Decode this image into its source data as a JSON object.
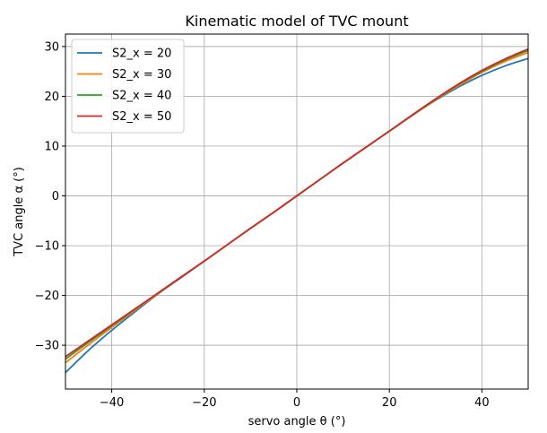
{
  "chart_data": {
    "type": "line",
    "title": "Kinematic model of TVC mount",
    "xlabel": "servo angle θ (°)",
    "ylabel": "TVC angle α (°)",
    "xlim": [
      -50,
      50
    ],
    "ylim": [
      -38.8,
      32.5
    ],
    "xticks": [
      -40,
      -20,
      0,
      20,
      40
    ],
    "xtick_labels": [
      "−40",
      "−20",
      "0",
      "20",
      "40"
    ],
    "yticks": [
      -30,
      -20,
      -10,
      0,
      10,
      20,
      30
    ],
    "ytick_labels": [
      "−30",
      "−20",
      "−10",
      "0",
      "10",
      "20",
      "30"
    ],
    "grid": true,
    "legend_position": "top-left",
    "x": [
      -50,
      -45,
      -40,
      -35,
      -30,
      -25,
      -20,
      -15,
      -10,
      -5,
      0,
      5,
      10,
      15,
      20,
      25,
      30,
      35,
      40,
      45,
      50
    ],
    "series": [
      {
        "name": "S2_x = 20",
        "color": "#1f77b4",
        "values": [
          -35.5,
          -31.0,
          -27.0,
          -23.3,
          -19.7,
          -16.4,
          -13.1,
          -9.8,
          -6.5,
          -3.3,
          0.0,
          3.3,
          6.6,
          9.8,
          13.0,
          16.2,
          19.2,
          21.9,
          24.2,
          26.1,
          27.6
        ]
      },
      {
        "name": "S2_x = 30",
        "color": "#ff7f0e",
        "values": [
          -33.5,
          -29.9,
          -26.4,
          -23.0,
          -19.6,
          -16.3,
          -13.1,
          -9.8,
          -6.5,
          -3.3,
          0.0,
          3.3,
          6.6,
          9.8,
          13.0,
          16.2,
          19.3,
          22.2,
          24.8,
          27.0,
          28.8
        ]
      },
      {
        "name": "S2_x = 40",
        "color": "#2ca02c",
        "values": [
          -32.8,
          -29.4,
          -26.1,
          -22.8,
          -19.5,
          -16.3,
          -13.1,
          -9.8,
          -6.5,
          -3.3,
          0.0,
          3.3,
          6.6,
          9.8,
          13.0,
          16.2,
          19.4,
          22.4,
          25.0,
          27.3,
          29.2
        ]
      },
      {
        "name": "S2_x = 50",
        "color": "#d62728",
        "values": [
          -32.3,
          -29.1,
          -25.9,
          -22.7,
          -19.5,
          -16.3,
          -13.1,
          -9.8,
          -6.5,
          -3.3,
          0.0,
          3.3,
          6.6,
          9.8,
          13.0,
          16.3,
          19.5,
          22.5,
          25.2,
          27.5,
          29.5
        ]
      }
    ]
  }
}
